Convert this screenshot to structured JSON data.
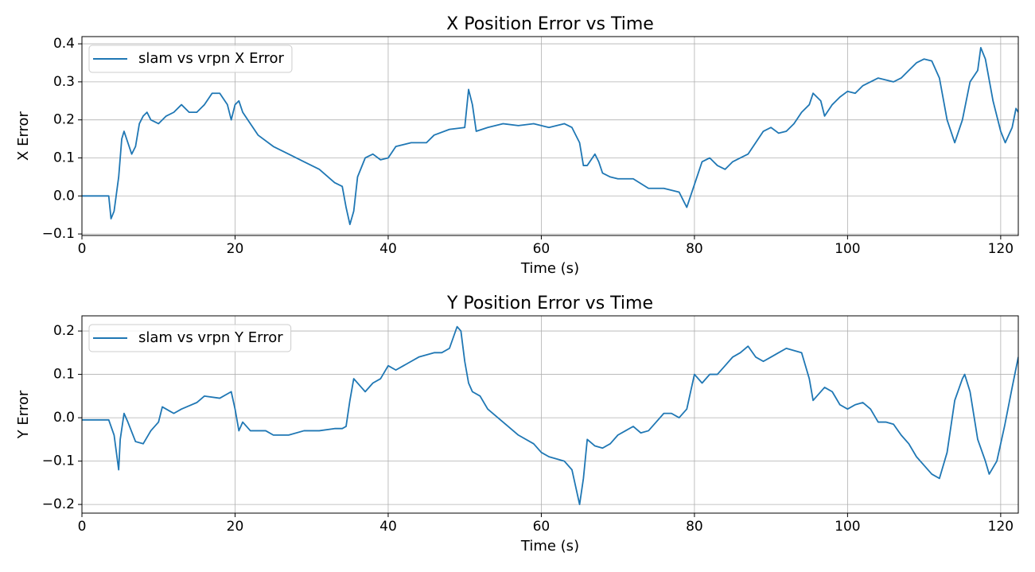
{
  "chart_data": [
    {
      "type": "line",
      "title": "X Position Error vs Time",
      "xlabel": "Time (s)",
      "ylabel": "X Error",
      "x": [
        0,
        3.5,
        3.8,
        4.2,
        4.8,
        5.2,
        5.5,
        6,
        6.5,
        7,
        7.5,
        8,
        8.5,
        9,
        10,
        11,
        12,
        13,
        14,
        15,
        16,
        17,
        18,
        19,
        19.5,
        20,
        20.5,
        21,
        22,
        23,
        25,
        27,
        29,
        31,
        33,
        34,
        34.5,
        35,
        35.5,
        36,
        37,
        38,
        39,
        40,
        41,
        43,
        45,
        46,
        48,
        50,
        50.5,
        51,
        51.5,
        53,
        55,
        57,
        59,
        61,
        63,
        64,
        65,
        65.5,
        66,
        67,
        67.5,
        68,
        69,
        70,
        72,
        74,
        76,
        78,
        79,
        80,
        81,
        82,
        83,
        84,
        85,
        86,
        87,
        88,
        89,
        90,
        91,
        92,
        93,
        94,
        95,
        95.5,
        96.5,
        97,
        98,
        99,
        100,
        101,
        102,
        104,
        106,
        107,
        108,
        109,
        110,
        111,
        112,
        113,
        114,
        115,
        116,
        117,
        117.4,
        118,
        119,
        120,
        120.6,
        121.5,
        122,
        122.3
      ],
      "series": [
        {
          "name": "slam vs vrpn X Error",
          "color": "#1f77b4",
          "values": [
            0,
            0,
            -0.06,
            -0.04,
            0.05,
            0.15,
            0.17,
            0.14,
            0.11,
            0.13,
            0.19,
            0.21,
            0.22,
            0.2,
            0.19,
            0.21,
            0.22,
            0.24,
            0.22,
            0.22,
            0.24,
            0.27,
            0.27,
            0.24,
            0.2,
            0.24,
            0.25,
            0.22,
            0.19,
            0.16,
            0.13,
            0.11,
            0.09,
            0.07,
            0.035,
            0.025,
            -0.03,
            -0.075,
            -0.04,
            0.05,
            0.1,
            0.11,
            0.095,
            0.1,
            0.13,
            0.14,
            0.14,
            0.16,
            0.175,
            0.18,
            0.28,
            0.24,
            0.17,
            0.18,
            0.19,
            0.185,
            0.19,
            0.18,
            0.19,
            0.18,
            0.14,
            0.08,
            0.08,
            0.11,
            0.09,
            0.06,
            0.05,
            0.045,
            0.045,
            0.02,
            0.02,
            0.01,
            -0.03,
            0.03,
            0.09,
            0.1,
            0.08,
            0.07,
            0.09,
            0.1,
            0.11,
            0.14,
            0.17,
            0.18,
            0.165,
            0.17,
            0.19,
            0.22,
            0.24,
            0.27,
            0.25,
            0.21,
            0.24,
            0.26,
            0.275,
            0.27,
            0.29,
            0.31,
            0.3,
            0.31,
            0.33,
            0.35,
            0.36,
            0.355,
            0.31,
            0.2,
            0.14,
            0.2,
            0.3,
            0.33,
            0.39,
            0.36,
            0.25,
            0.17,
            0.14,
            0.18,
            0.23,
            0.22
          ]
        }
      ],
      "xlim": [
        0,
        122.3
      ],
      "xticks": [
        0,
        20,
        40,
        60,
        80,
        100,
        120
      ],
      "ylim": [
        -0.104,
        0.419
      ],
      "yticks": [
        {
          "value": -0.1,
          "label": "−0.1"
        },
        {
          "value": 0,
          "label": "0.0"
        },
        0.1,
        0.2,
        0.3,
        0.4
      ],
      "grid": true,
      "legend": "upper left"
    },
    {
      "type": "line",
      "title": "Y Position Error vs Time",
      "xlabel": "Time (s)",
      "ylabel": "Y Error",
      "x": [
        0,
        3.5,
        4.2,
        4.8,
        5,
        5.5,
        6,
        7,
        8,
        9,
        10,
        10.5,
        11.5,
        12,
        13,
        15,
        16,
        18,
        19.5,
        20,
        20.5,
        21,
        22,
        24,
        25,
        27,
        29,
        31,
        33,
        34,
        34.5,
        35,
        35.5,
        36.5,
        37,
        38,
        39,
        40,
        41,
        42,
        43,
        44,
        46,
        47,
        48,
        49,
        49.5,
        50,
        50.5,
        51,
        52,
        53,
        55,
        57,
        59,
        60,
        61,
        63,
        64,
        65,
        65.5,
        66,
        67,
        68,
        69,
        70,
        71,
        72,
        73,
        74,
        75,
        76,
        77,
        78,
        79,
        80,
        81,
        82,
        83,
        84,
        85,
        86,
        87,
        88,
        89,
        90,
        91,
        92,
        93,
        94,
        95,
        95.5,
        96,
        97,
        98,
        99,
        100,
        101,
        102,
        103,
        104,
        105,
        106,
        107,
        108,
        109,
        110,
        111,
        112,
        113,
        114,
        115,
        115.3,
        116,
        117,
        118,
        118.5,
        119.5,
        120.5,
        121.5,
        122.3
      ],
      "series": [
        {
          "name": "slam vs vrpn Y Error",
          "color": "#1f77b4",
          "values": [
            -0.005,
            -0.005,
            -0.04,
            -0.12,
            -0.05,
            0.01,
            -0.01,
            -0.055,
            -0.06,
            -0.03,
            -0.01,
            0.025,
            0.015,
            0.01,
            0.02,
            0.035,
            0.05,
            0.045,
            0.06,
            0.02,
            -0.03,
            -0.01,
            -0.03,
            -0.03,
            -0.04,
            -0.04,
            -0.03,
            -0.03,
            -0.025,
            -0.025,
            -0.02,
            0.04,
            0.09,
            0.07,
            0.06,
            0.08,
            0.09,
            0.12,
            0.11,
            0.12,
            0.13,
            0.14,
            0.15,
            0.15,
            0.16,
            0.21,
            0.2,
            0.13,
            0.08,
            0.06,
            0.05,
            0.02,
            -0.01,
            -0.04,
            -0.06,
            -0.08,
            -0.09,
            -0.1,
            -0.12,
            -0.2,
            -0.14,
            -0.05,
            -0.065,
            -0.07,
            -0.06,
            -0.04,
            -0.03,
            -0.02,
            -0.035,
            -0.03,
            -0.01,
            0.01,
            0.01,
            0,
            0.02,
            0.1,
            0.08,
            0.1,
            0.1,
            0.12,
            0.14,
            0.15,
            0.165,
            0.14,
            0.13,
            0.14,
            0.15,
            0.16,
            0.155,
            0.15,
            0.09,
            0.04,
            0.05,
            0.07,
            0.06,
            0.03,
            0.02,
            0.03,
            0.035,
            0.02,
            -0.01,
            -0.01,
            -0.015,
            -0.04,
            -0.06,
            -0.09,
            -0.11,
            -0.13,
            -0.14,
            -0.08,
            0.04,
            0.09,
            0.1,
            0.06,
            -0.05,
            -0.1,
            -0.13,
            -0.1,
            -0.02,
            0.07,
            0.14
          ]
        }
      ],
      "xlim": [
        0,
        122.3
      ],
      "xticks": [
        0,
        20,
        40,
        60,
        80,
        100,
        120
      ],
      "ylim": [
        -0.22,
        0.235
      ],
      "yticks": [
        {
          "value": -0.2,
          "label": "−0.2"
        },
        {
          "value": -0.1,
          "label": "−0.1"
        },
        {
          "value": 0,
          "label": "0.0"
        },
        0.1,
        0.2
      ],
      "grid": true,
      "legend": "upper left"
    }
  ]
}
